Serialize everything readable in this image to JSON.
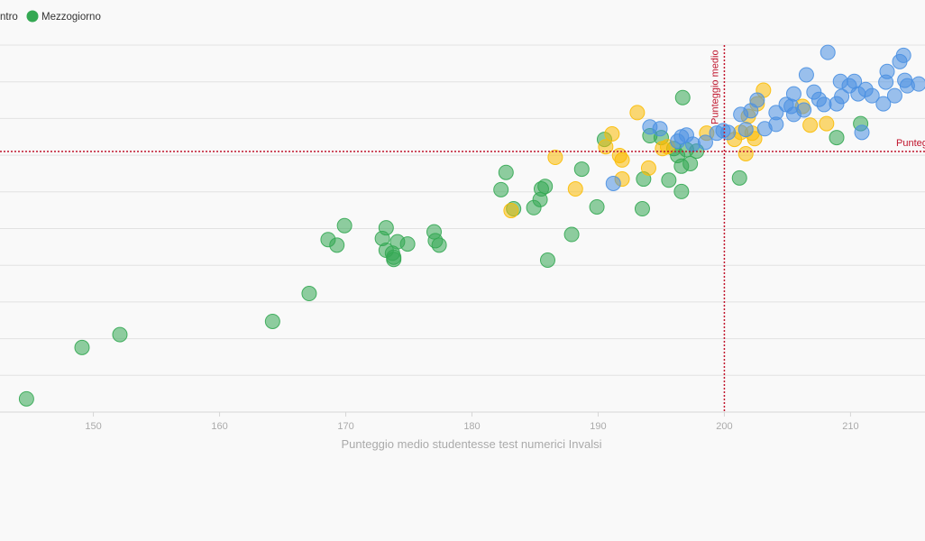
{
  "chart_data": {
    "type": "scatter",
    "xlabel": "Punteggio medio studentesse test numerici Invalsi",
    "ylabel": "",
    "x_ticks": [
      150,
      160,
      170,
      180,
      190,
      200,
      210
    ],
    "xlim": [
      142.6,
      215.9
    ],
    "ylim": [
      0,
      10
    ],
    "grid": true,
    "legend": {
      "placement": "top-left",
      "entries": [
        {
          "label": "ntro",
          "color": "#4a90e2"
        },
        {
          "label": "Mezzogiorno",
          "color": "#34a853"
        }
      ]
    },
    "reference_lines": [
      {
        "orientation": "vertical",
        "value": 200,
        "label": "Punteggio medio"
      },
      {
        "orientation": "horizontal",
        "value": 7.1,
        "label": "Punteg"
      }
    ],
    "series": [
      {
        "name": "Mezzogiorno",
        "color": "#34a853",
        "points": [
          [
            144.7,
            0.36
          ],
          [
            149.1,
            1.76
          ],
          [
            152.1,
            2.11
          ],
          [
            164.2,
            2.47
          ],
          [
            167.1,
            3.23
          ],
          [
            168.6,
            4.7
          ],
          [
            169.3,
            4.55
          ],
          [
            169.9,
            5.08
          ],
          [
            172.9,
            4.73
          ],
          [
            173.2,
            5.02
          ],
          [
            173.2,
            4.41
          ],
          [
            173.7,
            4.33
          ],
          [
            173.8,
            4.22
          ],
          [
            173.8,
            4.16
          ],
          [
            174.1,
            4.64
          ],
          [
            174.9,
            4.58
          ],
          [
            177.0,
            4.91
          ],
          [
            177.1,
            4.67
          ],
          [
            177.4,
            4.55
          ],
          [
            182.3,
            6.06
          ],
          [
            182.7,
            6.53
          ],
          [
            183.3,
            5.54
          ],
          [
            184.9,
            5.57
          ],
          [
            185.4,
            5.79
          ],
          [
            185.5,
            6.08
          ],
          [
            185.8,
            6.15
          ],
          [
            186.0,
            4.14
          ],
          [
            187.9,
            4.84
          ],
          [
            188.7,
            6.62
          ],
          [
            189.9,
            5.59
          ],
          [
            190.5,
            7.43
          ],
          [
            193.5,
            5.54
          ],
          [
            193.6,
            6.35
          ],
          [
            194.1,
            7.53
          ],
          [
            195.0,
            7.48
          ],
          [
            195.6,
            6.32
          ],
          [
            196.0,
            7.18
          ],
          [
            196.3,
            6.99
          ],
          [
            196.6,
            6.7
          ],
          [
            196.6,
            6.01
          ],
          [
            196.7,
            8.57
          ],
          [
            197.0,
            7.15
          ],
          [
            197.3,
            6.77
          ],
          [
            197.8,
            7.11
          ],
          [
            201.2,
            6.38
          ],
          [
            208.9,
            7.48
          ],
          [
            210.8,
            7.86
          ]
        ]
      },
      {
        "name": "",
        "color": "#fbbc04",
        "points": [
          [
            183.1,
            5.49
          ],
          [
            186.6,
            6.94
          ],
          [
            188.2,
            6.08
          ],
          [
            190.6,
            7.23
          ],
          [
            191.1,
            7.58
          ],
          [
            191.7,
            6.99
          ],
          [
            191.9,
            6.87
          ],
          [
            191.9,
            6.35
          ],
          [
            193.1,
            8.16
          ],
          [
            194.0,
            6.65
          ],
          [
            195.5,
            7.23
          ],
          [
            198.6,
            7.6
          ],
          [
            200.8,
            7.43
          ],
          [
            201.3,
            7.62
          ],
          [
            201.7,
            7.04
          ],
          [
            201.9,
            8.06
          ],
          [
            202.2,
            7.6
          ],
          [
            202.4,
            7.45
          ],
          [
            202.6,
            8.4
          ],
          [
            203.1,
            8.77
          ],
          [
            206.2,
            8.33
          ],
          [
            206.8,
            7.82
          ],
          [
            208.1,
            7.86
          ],
          [
            195.1,
            7.18
          ]
        ]
      },
      {
        "name": "ntro",
        "color": "#4a90e2",
        "points": [
          [
            191.2,
            6.23
          ],
          [
            194.1,
            7.77
          ],
          [
            194.9,
            7.72
          ],
          [
            196.3,
            7.38
          ],
          [
            196.6,
            7.5
          ],
          [
            197.0,
            7.55
          ],
          [
            197.5,
            7.3
          ],
          [
            198.5,
            7.35
          ],
          [
            199.4,
            7.6
          ],
          [
            199.9,
            7.67
          ],
          [
            200.3,
            7.62
          ],
          [
            201.3,
            8.11
          ],
          [
            201.7,
            7.7
          ],
          [
            202.1,
            8.21
          ],
          [
            202.6,
            8.5
          ],
          [
            203.2,
            7.72
          ],
          [
            204.1,
            7.84
          ],
          [
            204.1,
            8.16
          ],
          [
            204.9,
            8.38
          ],
          [
            205.3,
            8.33
          ],
          [
            205.5,
            8.67
          ],
          [
            205.5,
            8.11
          ],
          [
            206.3,
            8.23
          ],
          [
            206.5,
            9.19
          ],
          [
            207.1,
            8.72
          ],
          [
            207.5,
            8.52
          ],
          [
            207.9,
            8.38
          ],
          [
            208.2,
            9.8
          ],
          [
            208.9,
            8.4
          ],
          [
            209.2,
            9.01
          ],
          [
            209.3,
            8.6
          ],
          [
            209.9,
            8.89
          ],
          [
            210.3,
            9.01
          ],
          [
            210.6,
            8.67
          ],
          [
            210.9,
            7.62
          ],
          [
            211.2,
            8.79
          ],
          [
            211.7,
            8.62
          ],
          [
            212.6,
            8.4
          ],
          [
            212.8,
            8.99
          ],
          [
            212.9,
            9.28
          ],
          [
            213.5,
            8.62
          ],
          [
            213.9,
            9.55
          ],
          [
            214.2,
            9.72
          ],
          [
            214.3,
            9.04
          ],
          [
            214.5,
            8.89
          ],
          [
            215.4,
            8.94
          ]
        ]
      }
    ]
  }
}
